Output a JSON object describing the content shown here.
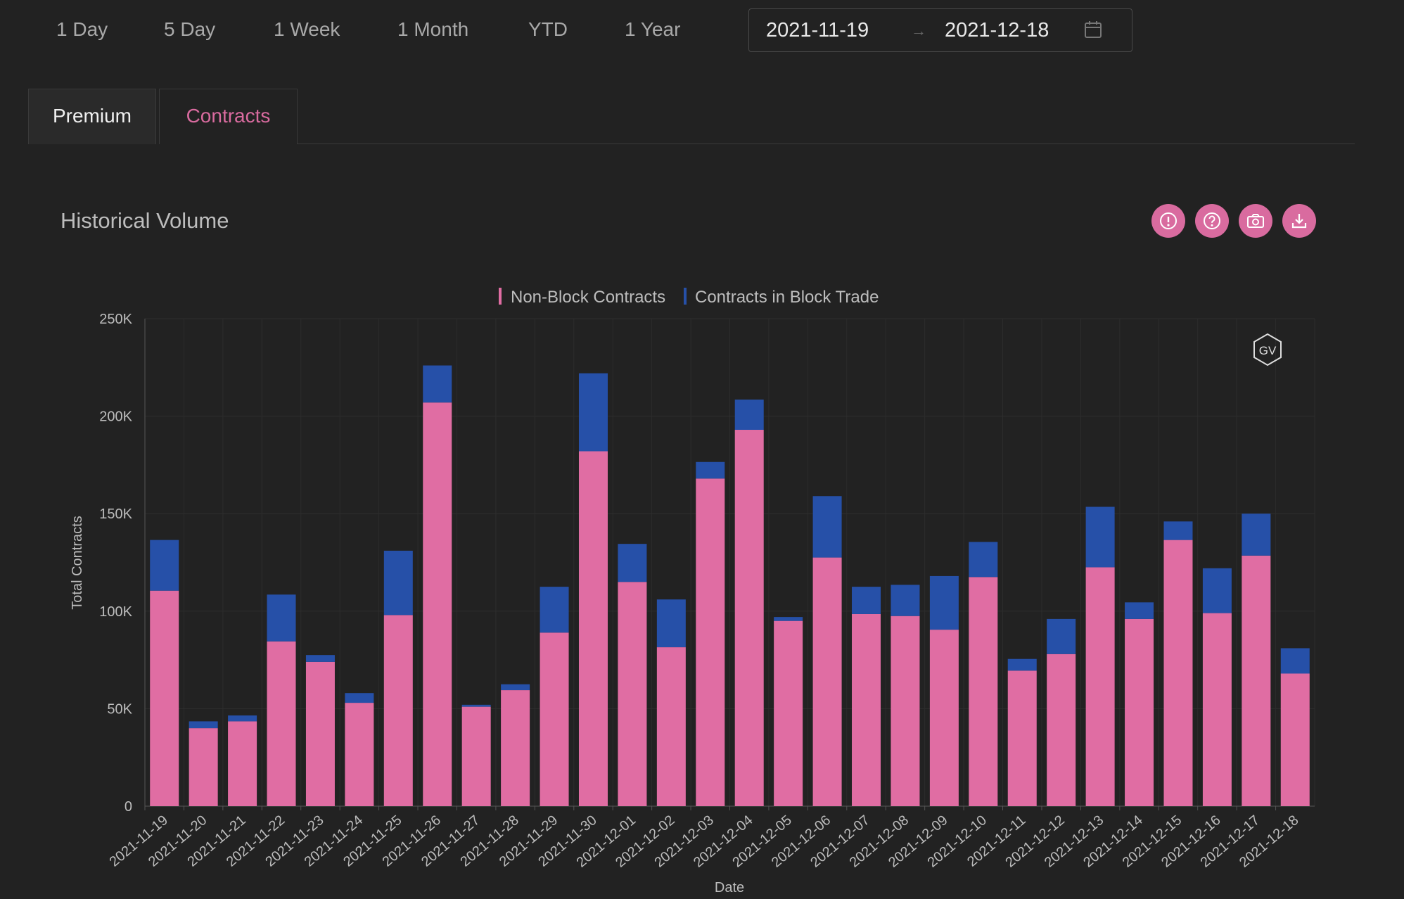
{
  "toolbar": {
    "ranges": [
      {
        "label": "1 Day"
      },
      {
        "label": "5 Day"
      },
      {
        "label": "1 Week"
      },
      {
        "label": "1 Month"
      },
      {
        "label": "YTD"
      },
      {
        "label": "1 Year"
      }
    ],
    "date_start": "2021-11-19",
    "date_end": "2021-12-18",
    "date_separator": "→"
  },
  "tabs": {
    "premium": "Premium",
    "contracts": "Contracts",
    "active": "contracts"
  },
  "panel": {
    "title": "Historical Volume",
    "tools": [
      "info-icon",
      "help-icon",
      "camera-icon",
      "download-icon"
    ],
    "watermark": "GV"
  },
  "colors": {
    "background": "#222222",
    "accent": "#d96b9f",
    "non_block": "#e06da3",
    "block": "#2650a8"
  },
  "chart_data": {
    "type": "bar",
    "stacked": true,
    "xlabel": "Date",
    "ylabel": "Total Contracts",
    "ylim": [
      0,
      250000
    ],
    "yticks": [
      "0",
      "50K",
      "100K",
      "150K",
      "200K",
      "250K"
    ],
    "grid": true,
    "legend_position": "top-center",
    "categories": [
      "2021-11-19",
      "2021-11-20",
      "2021-11-21",
      "2021-11-22",
      "2021-11-23",
      "2021-11-24",
      "2021-11-25",
      "2021-11-26",
      "2021-11-27",
      "2021-11-28",
      "2021-11-29",
      "2021-11-30",
      "2021-12-01",
      "2021-12-02",
      "2021-12-03",
      "2021-12-04",
      "2021-12-05",
      "2021-12-06",
      "2021-12-07",
      "2021-12-08",
      "2021-12-09",
      "2021-12-10",
      "2021-12-11",
      "2021-12-12",
      "2021-12-13",
      "2021-12-14",
      "2021-12-15",
      "2021-12-16",
      "2021-12-17",
      "2021-12-18"
    ],
    "series": [
      {
        "name": "Non-Block Contracts",
        "color": "#e06da3",
        "values": [
          110500,
          40000,
          43500,
          84500,
          74000,
          53000,
          98000,
          207000,
          51000,
          59500,
          89000,
          182000,
          115000,
          81500,
          168000,
          193000,
          95000,
          127500,
          98500,
          97500,
          90500,
          117500,
          69500,
          78000,
          122500,
          96000,
          136500,
          99000,
          128500,
          68000
        ]
      },
      {
        "name": "Contracts in Block Trade",
        "color": "#2650a8",
        "values": [
          26000,
          3500,
          3000,
          24000,
          3500,
          5000,
          33000,
          19000,
          1000,
          3000,
          23500,
          40000,
          19500,
          24500,
          8500,
          15500,
          2000,
          31500,
          14000,
          16000,
          27500,
          18000,
          6000,
          18000,
          31000,
          8500,
          9500,
          23000,
          21500,
          13000
        ]
      }
    ]
  }
}
